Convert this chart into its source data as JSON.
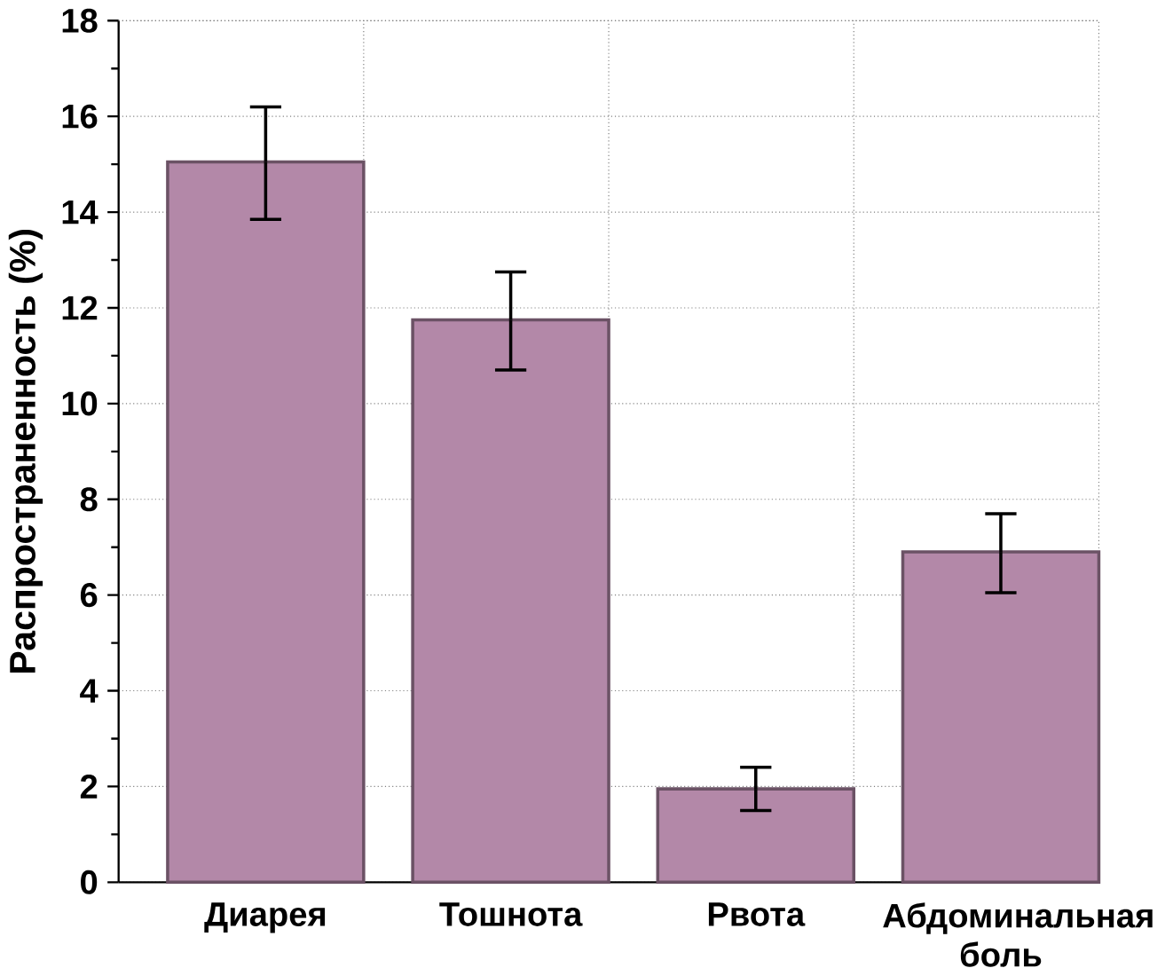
{
  "chart_data": {
    "type": "bar",
    "ylabel": "Распространенность (%)",
    "categories": [
      "Диарея",
      "Тошнота",
      "Рвота",
      "Абдоминальная боль"
    ],
    "values": [
      15.05,
      11.75,
      1.95,
      6.9
    ],
    "errors": [
      [
        13.85,
        16.2
      ],
      [
        10.7,
        12.75
      ],
      [
        1.5,
        2.4
      ],
      [
        6.05,
        7.7
      ]
    ],
    "color": "#b388a8",
    "ylim": [
      0,
      18
    ],
    "yticks": [
      0,
      2,
      4,
      6,
      8,
      10,
      12,
      14,
      16,
      18
    ],
    "grid": true
  }
}
